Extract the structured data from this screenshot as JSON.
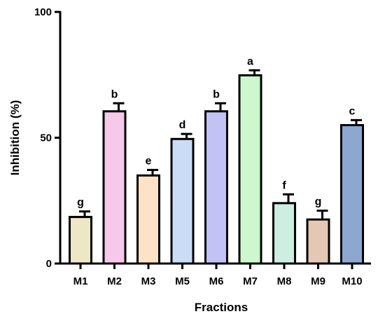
{
  "chart_data": {
    "type": "bar",
    "categories": [
      "M1",
      "M2",
      "M3",
      "M5",
      "M6",
      "M7",
      "M8",
      "M9",
      "M10"
    ],
    "values": [
      18.5,
      60.5,
      35.0,
      49.5,
      60.5,
      74.8,
      24.0,
      17.5,
      55.0
    ],
    "errors": [
      2.2,
      3.2,
      2.2,
      2.0,
      3.2,
      2.0,
      3.5,
      3.5,
      2.0
    ],
    "significance": [
      "g",
      "b",
      "e",
      "d",
      "b",
      "a",
      "f",
      "g",
      "c"
    ],
    "colors": [
      "#ede7c6",
      "#f7c8ea",
      "#fde2c5",
      "#cbdcf6",
      "#c2c2f6",
      "#cdf8cd",
      "#cdeee1",
      "#e5c8b4",
      "#8ca8d0"
    ],
    "ylim": [
      0,
      100
    ],
    "yticks": [
      0,
      50,
      100
    ],
    "xlabel": "Fractions",
    "ylabel": "Inhibition (%)",
    "title": "",
    "grid": false,
    "legend": "none"
  }
}
